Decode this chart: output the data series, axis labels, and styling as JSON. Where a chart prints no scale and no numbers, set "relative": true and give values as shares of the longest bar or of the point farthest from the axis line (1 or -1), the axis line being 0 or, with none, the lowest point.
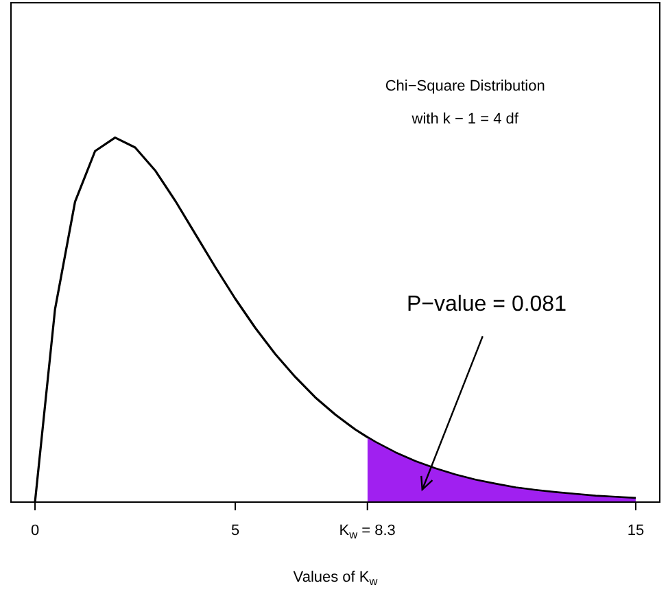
{
  "chart_data": {
    "type": "line",
    "relative": true,
    "title": "Chi−Square Distribution",
    "subtitle": "with k − 1 = 4 df",
    "xlabel": "Values of K$_{w}$",
    "xlim": [
      -0.6,
      15.6
    ],
    "xticks": [
      0,
      5,
      {
        "value": 8.3,
        "label": "K$_{w}$ = 8.3"
      },
      15
    ],
    "legend": false,
    "marker": "none",
    "line_style": "solid",
    "series": [
      {
        "type": "line",
        "color": "#000000",
        "x": [
          0,
          0.5,
          1,
          1.5,
          2,
          2.5,
          3,
          3.5,
          4,
          4.5,
          5,
          5.5,
          6,
          6.5,
          7,
          7.5,
          8,
          8.3,
          8.5,
          9,
          9.5,
          10,
          10.5,
          11,
          11.5,
          12,
          12.5,
          13,
          13.5,
          14,
          14.5,
          15
        ],
        "values": [
          0,
          0.529,
          0.824,
          0.963,
          1,
          0.973,
          0.91,
          0.827,
          0.736,
          0.645,
          0.558,
          0.478,
          0.406,
          0.343,
          0.287,
          0.24,
          0.199,
          0.178,
          0.165,
          0.136,
          0.112,
          0.092,
          0.075,
          0.061,
          0.05,
          0.04,
          0.033,
          0.027,
          0.022,
          0.017,
          0.014,
          0.011
        ]
      },
      {
        "type": "area",
        "color": "#a020f0",
        "x": [
          8.3,
          8.5,
          9,
          9.5,
          10,
          10.5,
          11,
          11.5,
          12,
          12.5,
          13,
          13.5,
          14,
          14.5,
          15
        ],
        "values": [
          0.178,
          0.165,
          0.136,
          0.112,
          0.092,
          0.075,
          0.061,
          0.05,
          0.04,
          0.033,
          0.027,
          0.022,
          0.017,
          0.014,
          0.011
        ]
      }
    ],
    "annotations": [
      "P−value = 0.081"
    ]
  }
}
